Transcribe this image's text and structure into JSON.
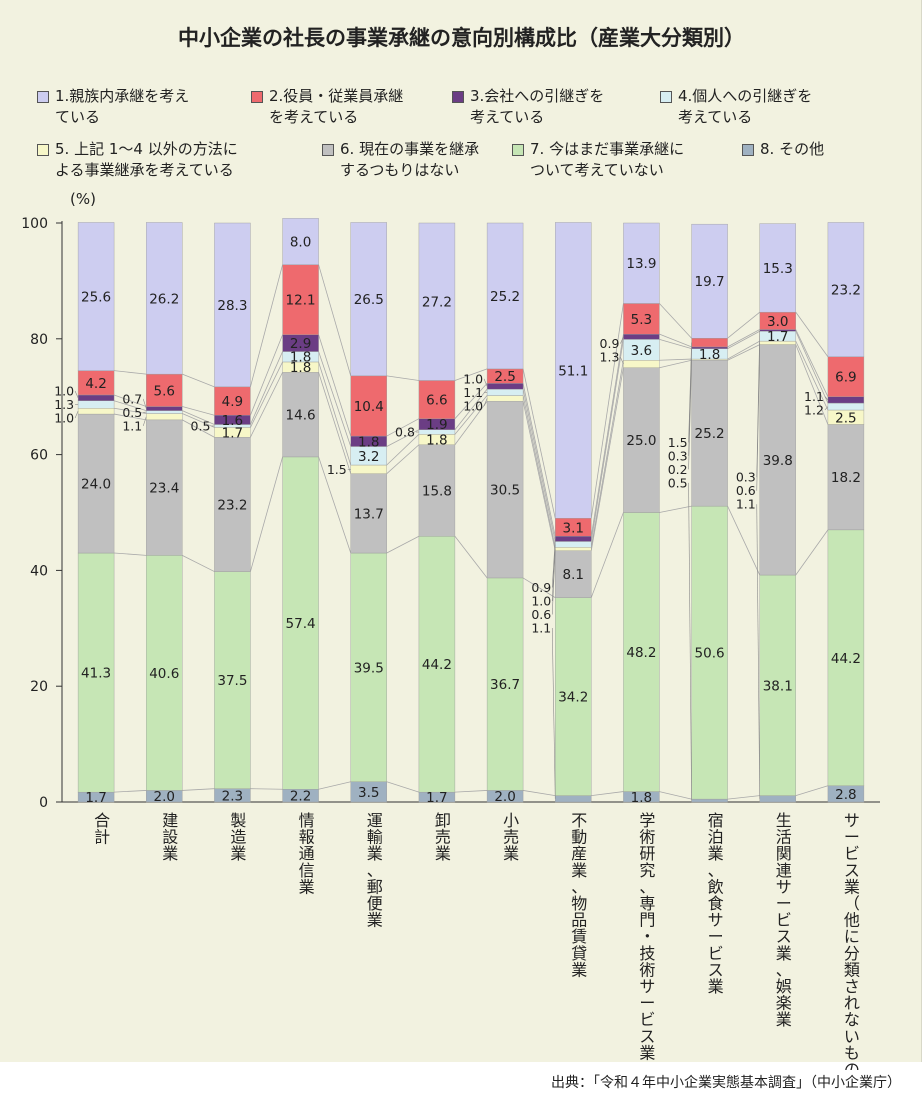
{
  "chart_data": {
    "type": "bar",
    "stacked": true,
    "title": "中小企業の社長の事業承継の意向別構成比（産業大分類別）",
    "ylabel": "(%)",
    "ylim": [
      0,
      100
    ],
    "yticks": [
      0,
      20,
      40,
      60,
      80,
      100
    ],
    "grid": false,
    "legend_position": "top",
    "categories": [
      "合計",
      "建設業",
      "製造業",
      "情報通信業",
      "運輸業、郵便業",
      "卸売業",
      "小売業",
      "不動産業、物品賃貸業",
      "学術研究、専門・技術サービス業",
      "宿泊業、飲食サービス業",
      "生活関連サービス業、娯楽業",
      "サービス業（他に分類されないもの）"
    ],
    "series": [
      {
        "name": "8.その他",
        "color": "#9fb1c1",
        "values": [
          1.7,
          2.0,
          2.3,
          2.2,
          3.5,
          1.7,
          2.0,
          1.1,
          1.8,
          0.5,
          1.1,
          2.8
        ]
      },
      {
        "name": "7.今はまだ事業承継について考えていない",
        "color": "#c6e6b5",
        "values": [
          41.3,
          40.6,
          37.5,
          57.4,
          39.5,
          44.2,
          36.7,
          34.2,
          48.2,
          50.6,
          38.1,
          44.2
        ]
      },
      {
        "name": "6.現在の事業を継承するつもりはない",
        "color": "#c0c0c0",
        "values": [
          24.0,
          23.4,
          23.2,
          14.6,
          13.7,
          15.8,
          30.5,
          8.1,
          25.0,
          25.2,
          39.8,
          18.2
        ]
      },
      {
        "name": "5.上記1～4以外の方法による事業継承を考えている",
        "color": "#f7f7c8",
        "values": [
          1.0,
          1.1,
          1.7,
          1.8,
          1.5,
          1.8,
          1.0,
          0.6,
          1.3,
          0.2,
          0.6,
          2.5
        ]
      },
      {
        "name": "4.個人への引継ぎを考えている",
        "color": "#d7eef2",
        "values": [
          1.3,
          0.5,
          0.5,
          1.8,
          3.2,
          0.8,
          1.1,
          1.0,
          3.6,
          1.8,
          1.7,
          1.2
        ]
      },
      {
        "name": "3.会社への引継ぎを考えている",
        "color": "#6b3d84",
        "values": [
          1.0,
          0.7,
          1.6,
          2.9,
          1.8,
          1.9,
          1.0,
          0.9,
          0.9,
          0.3,
          0.3,
          1.1
        ]
      },
      {
        "name": "2.役員・従業員承継を考えている",
        "color": "#ee6a6e",
        "values": [
          4.2,
          5.6,
          4.9,
          12.1,
          10.4,
          6.6,
          2.5,
          3.1,
          5.3,
          1.5,
          3.0,
          6.9
        ]
      },
      {
        "name": "1.親族内承継を考えている",
        "color": "#cdcdf0",
        "values": [
          25.6,
          26.2,
          28.3,
          8.0,
          26.5,
          27.2,
          25.2,
          51.1,
          13.9,
          19.7,
          15.3,
          23.2
        ]
      }
    ]
  },
  "legend": [
    {
      "lines": [
        "1.親族内承継を考え",
        "ている"
      ],
      "color": "#cdcdf0"
    },
    {
      "lines": [
        "2.役員・従業員承継",
        "を考えている"
      ],
      "color": "#ee6a6e"
    },
    {
      "lines": [
        "3.会社への引継ぎを",
        "考えている"
      ],
      "color": "#6b3d84"
    },
    {
      "lines": [
        "4.個人への引継ぎを",
        "考えている"
      ],
      "color": "#d7eef2"
    },
    {
      "lines": [
        "5. 上記 1～4 以外の方法に",
        "よる事業継承を考えている"
      ],
      "color": "#f7f7c8"
    },
    {
      "lines": [
        "6. 現在の事業を継承",
        "するつもりはない"
      ],
      "color": "#c0c0c0"
    },
    {
      "lines": [
        "7. 今はまだ事業承継に",
        "ついて考えていない"
      ],
      "color": "#c6e6b5"
    },
    {
      "lines": [
        "8. その他"
      ],
      "color": "#9fb1c1"
    }
  ],
  "category_labels": [
    [
      "合",
      "計"
    ],
    [
      "建",
      "設",
      "業"
    ],
    [
      "製",
      "造",
      "業"
    ],
    [
      "情",
      "報",
      "通",
      "信",
      "業"
    ],
    [
      "運",
      "輸",
      "業",
      "、",
      "郵",
      "便",
      "業"
    ],
    [
      "卸",
      "売",
      "業"
    ],
    [
      "小",
      "売",
      "業"
    ],
    [
      "不",
      "動",
      "産",
      "業",
      "、",
      "物",
      "品",
      "賃",
      "貸",
      "業"
    ],
    [
      "学",
      "術",
      "研",
      "究",
      "、",
      "専",
      "門",
      "・",
      "技",
      "術",
      "サ",
      "ー",
      "ビ",
      "ス",
      "業"
    ],
    [
      "宿",
      "泊",
      "業",
      "、",
      "飲",
      "食",
      "サ",
      "ー",
      "ビ",
      "ス",
      "業"
    ],
    [
      "生",
      "活",
      "関",
      "連",
      "サ",
      "ー",
      "ビ",
      "ス",
      "業",
      "、",
      "娯",
      "楽",
      "業"
    ],
    [
      "サ",
      "ー",
      "ビ",
      "ス",
      "業",
      "（",
      "他",
      "に",
      "分",
      "類",
      "さ",
      "れ",
      "な",
      "い",
      "も",
      "の",
      "）"
    ]
  ],
  "source": "出典：「令和４年中小企業実態基本調査」（中小企業庁）"
}
